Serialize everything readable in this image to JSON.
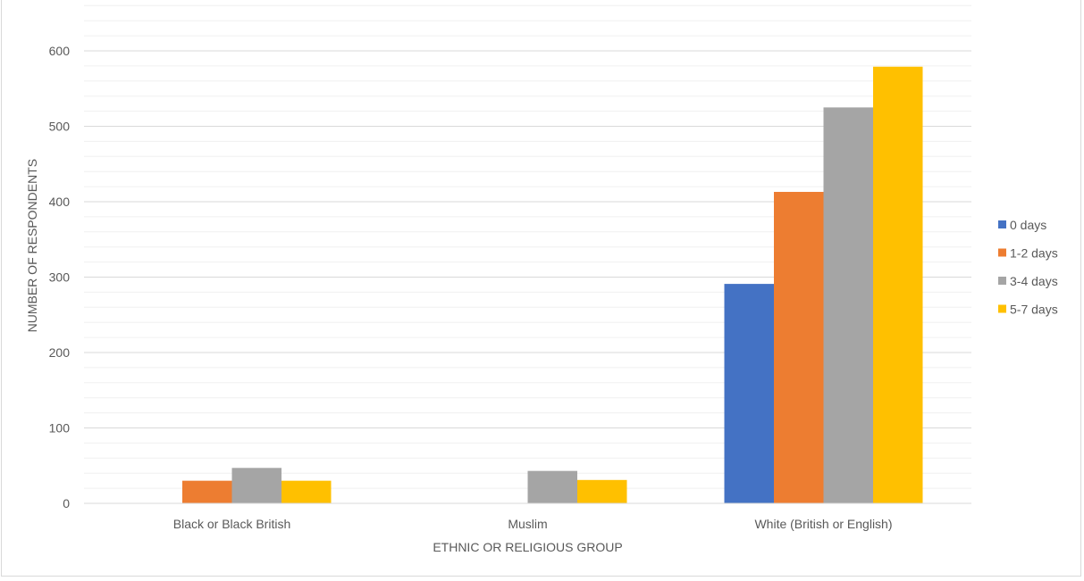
{
  "chart_data": {
    "type": "bar",
    "title": "",
    "xlabel": "ETHNIC OR RELIGIOUS GROUP",
    "ylabel": "NUMBER OF RESPONDENTS",
    "categories": [
      "Black or Black British",
      "Muslim",
      "White (British or English)"
    ],
    "series": [
      {
        "name": "0 days",
        "color": "#4472C4",
        "values": [
          0,
          0,
          291
        ]
      },
      {
        "name": "1-2 days",
        "color": "#ED7D31",
        "values": [
          30,
          0,
          413
        ]
      },
      {
        "name": "3-4 days",
        "color": "#A5A5A5",
        "values": [
          47,
          43,
          525
        ]
      },
      {
        "name": "5-7 days",
        "color": "#FFC000",
        "values": [
          30,
          31,
          579
        ]
      }
    ],
    "ylim": [
      0,
      660
    ],
    "yticks": [
      0,
      100,
      200,
      300,
      400,
      500,
      600
    ],
    "ytick_labels": [
      "0",
      "100",
      "200",
      "300",
      "400",
      "500",
      "600"
    ],
    "grid": true,
    "legend_position": "right"
  }
}
